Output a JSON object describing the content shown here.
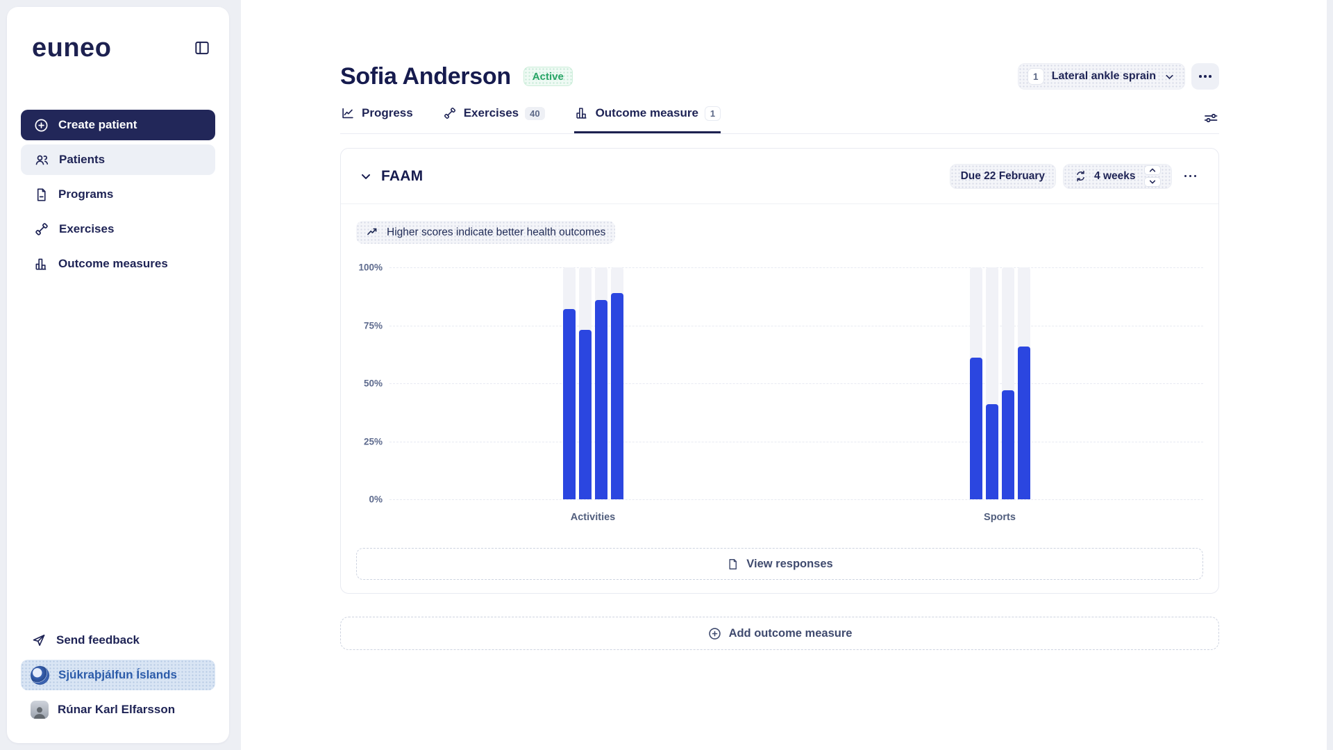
{
  "sidebar": {
    "logo": "euneo",
    "create_button": {
      "label": "Create patient"
    },
    "items": [
      {
        "id": "patients",
        "label": "Patients",
        "active": true
      },
      {
        "id": "programs",
        "label": "Programs",
        "active": false
      },
      {
        "id": "exercises",
        "label": "Exercises",
        "active": false
      },
      {
        "id": "outcome-measures",
        "label": "Outcome measures",
        "active": false
      }
    ],
    "footer": {
      "feedback_label": "Send feedback",
      "organization_name": "Sjúkraþjálfun Íslands",
      "user_name": "Rúnar Karl Elfarsson"
    }
  },
  "header": {
    "patient_name": "Sofia Anderson",
    "status_badge": "Active",
    "condition": {
      "count": "1",
      "label": "Lateral ankle sprain"
    }
  },
  "tabs": [
    {
      "label": "Progress",
      "badge": ""
    },
    {
      "label": "Exercises",
      "badge": "40"
    },
    {
      "label": "Outcome measure",
      "badge": "1",
      "active": true
    }
  ],
  "measure_card": {
    "title": "FAAM",
    "due_label": "Due 22 February",
    "frequency_label": "4 weeks",
    "hint": "Higher scores indicate better health outcomes",
    "view_responses_label": "View responses"
  },
  "add_measure_label": "Add outcome measure",
  "chart_data": {
    "type": "bar",
    "title": "FAAM scores",
    "categories": [
      "Activities",
      "Sports"
    ],
    "groups": [
      {
        "label": "Activities",
        "values": [
          82,
          73,
          86,
          89
        ]
      },
      {
        "label": "Sports",
        "values": [
          61,
          41,
          47,
          66
        ]
      }
    ],
    "ylim": [
      0,
      100
    ],
    "yticks": [
      "0%",
      "25%",
      "50%",
      "75%",
      "100%"
    ],
    "grid": true,
    "legend": "none",
    "bar_color": "#2b46e0",
    "track_color": "#f1f2f7",
    "note": "Higher scores indicate better health outcomes"
  },
  "icons": {
    "panel-collapse-icon": "sidebar toggle square",
    "plus-circle-icon": "circled plus",
    "patients-icon": "two people",
    "programs-icon": "document",
    "exercises-icon": "dumbbell",
    "outcome-measures-icon": "bar chart",
    "send-icon": "paper plane",
    "progress-icon": "line chart",
    "chevron-down-icon": "chevron down",
    "more-icon": "three dots",
    "sliders-icon": "filter sliders",
    "refresh-icon": "repeat arrows",
    "trending-up-icon": "rising arrow",
    "file-icon": "document page"
  },
  "colors": {
    "accent_blue": "#2b46e0",
    "navy": "#1e2355",
    "green": "#27a465",
    "page_bg": "#edeff4"
  }
}
